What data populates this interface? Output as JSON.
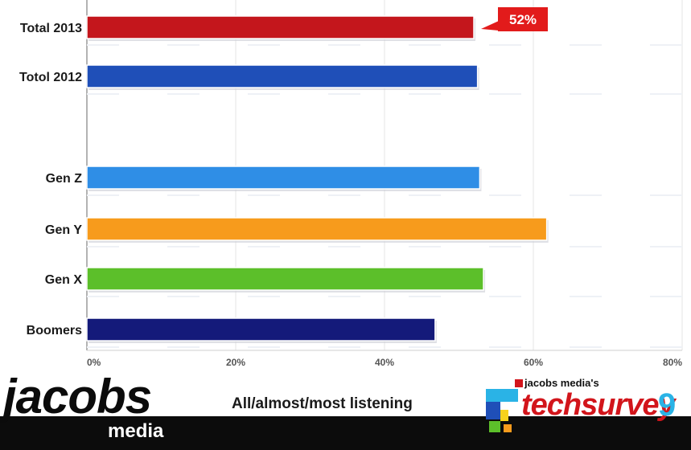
{
  "chart_data": {
    "type": "bar",
    "orientation": "horizontal",
    "categories": [
      "Total 2013",
      "Totol 2012",
      "Gen Z",
      "Gen Y",
      "Gen X",
      "Boomers"
    ],
    "values": [
      52,
      52.5,
      52.8,
      61.8,
      53.3,
      46.8
    ],
    "colors": [
      "#c4161c",
      "#1f4fb8",
      "#2f8ee6",
      "#f79b1c",
      "#5cbf2a",
      "#141a7a"
    ],
    "xlim": [
      0,
      80
    ],
    "xticks": [
      "0%",
      "20%",
      "40%",
      "60%",
      "80%"
    ],
    "grid": true,
    "annotation": {
      "category": "Total 2013",
      "label": "52%"
    }
  },
  "footer": {
    "logo": "jacobs",
    "logo_sub": "media",
    "caption": "All/almost/most listening",
    "survey_prefix": "jacobs media's",
    "survey_name": "techsurvey",
    "survey_number": "9"
  }
}
